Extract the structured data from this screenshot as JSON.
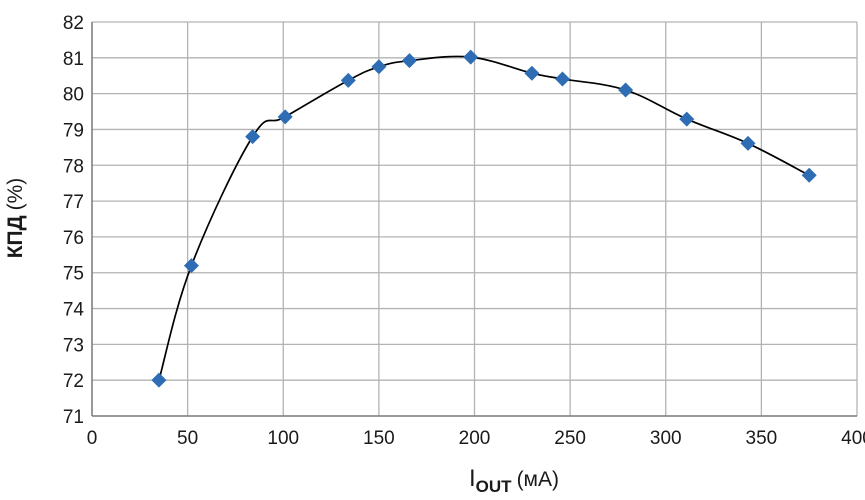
{
  "chart_data": {
    "type": "line",
    "title": "",
    "xlabel": {
      "main": "I",
      "sub": "OUT",
      "unit": "(мА)"
    },
    "ylabel": {
      "main": "КПД",
      "unit": "(%)"
    },
    "xlim": [
      0,
      400
    ],
    "ylim": [
      71,
      82
    ],
    "xticks": [
      0,
      50,
      100,
      150,
      200,
      250,
      300,
      350,
      400
    ],
    "yticks": [
      71,
      72,
      73,
      74,
      75,
      76,
      77,
      78,
      79,
      80,
      81,
      82
    ],
    "grid": true,
    "marker": "diamond",
    "colors": {
      "marker": "#2e6db4",
      "line": "#000000",
      "grid": "#b3b3b3",
      "axis": "#7f7f7f"
    },
    "series": [
      {
        "points": [
          {
            "x": 35,
            "y": 72.0
          },
          {
            "x": 52,
            "y": 75.2
          },
          {
            "x": 84,
            "y": 78.8
          },
          {
            "x": 101,
            "y": 79.35
          },
          {
            "x": 134,
            "y": 80.37
          },
          {
            "x": 150,
            "y": 80.75
          },
          {
            "x": 166,
            "y": 80.92
          },
          {
            "x": 198,
            "y": 81.02
          },
          {
            "x": 230,
            "y": 80.57
          },
          {
            "x": 246,
            "y": 80.41
          },
          {
            "x": 279,
            "y": 80.1
          },
          {
            "x": 311,
            "y": 79.29
          },
          {
            "x": 343,
            "y": 78.61
          },
          {
            "x": 375,
            "y": 77.72
          }
        ]
      }
    ]
  }
}
